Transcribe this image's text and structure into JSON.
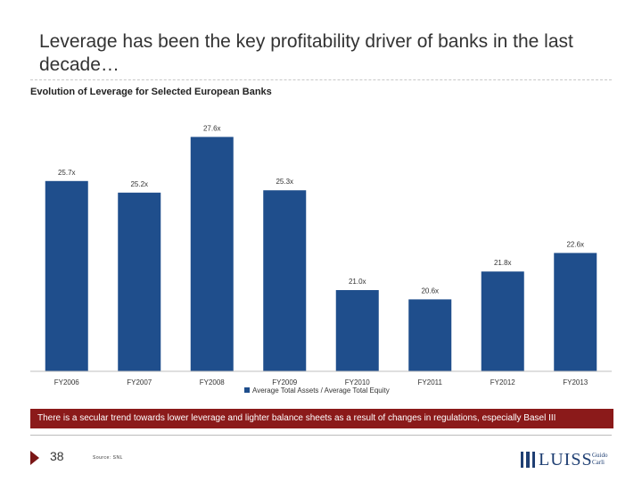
{
  "slide": {
    "title": "Leverage has been the key profitability driver of banks in the last decade…",
    "subtitle": "Evolution of Leverage for Selected European Banks",
    "banner": "There is a secular trend towards lower leverage and lighter balance sheets as a result of changes in regulations, especially Basel III",
    "page_number": "38",
    "source": "Source: SNL",
    "logo": {
      "name": "LUISS",
      "sub": "Guido Carli"
    }
  },
  "colors": {
    "bar": "#1f4e8c",
    "banner": "#8b1a1a",
    "logo": "#1f3f73"
  },
  "chart_data": {
    "type": "bar",
    "categories": [
      "FY2006",
      "FY2007",
      "FY2008",
      "FY2009",
      "FY2010",
      "FY2011",
      "FY2012",
      "FY2013"
    ],
    "series": [
      {
        "name": "Average Total Assets / Average Total Equity",
        "values": [
          25.7,
          25.2,
          27.6,
          25.3,
          21.0,
          20.6,
          21.8,
          22.6
        ],
        "labels": [
          "25.7x",
          "25.2x",
          "27.6x",
          "25.3x",
          "21.0x",
          "20.6x",
          "21.8x",
          "22.6x"
        ]
      }
    ],
    "ylim": [
      17.5,
      28.0
    ],
    "grid": false,
    "legend": "bottom"
  }
}
